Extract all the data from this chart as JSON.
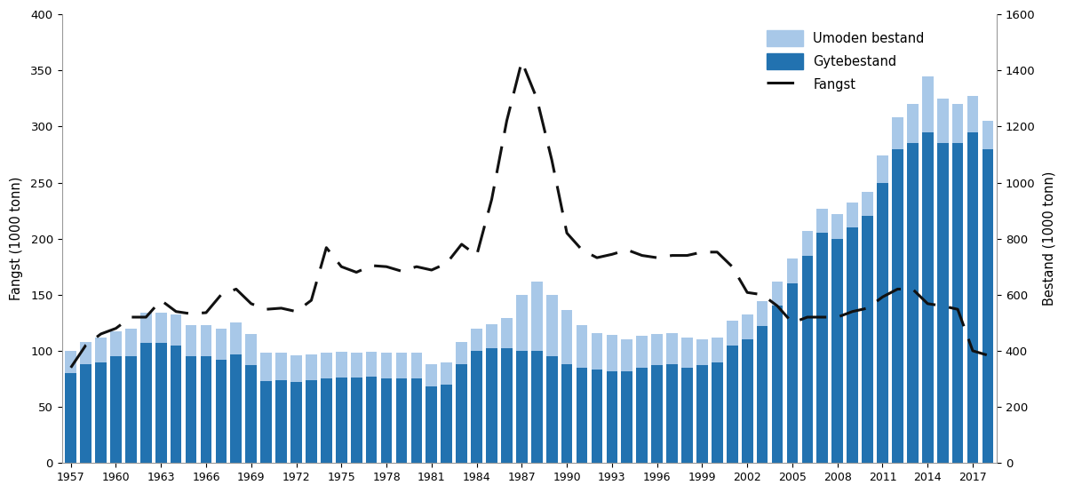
{
  "years": [
    1957,
    1958,
    1959,
    1960,
    1961,
    1962,
    1963,
    1964,
    1965,
    1966,
    1967,
    1968,
    1969,
    1970,
    1971,
    1972,
    1973,
    1974,
    1975,
    1976,
    1977,
    1978,
    1979,
    1980,
    1981,
    1982,
    1983,
    1984,
    1985,
    1986,
    1987,
    1988,
    1989,
    1990,
    1991,
    1992,
    1993,
    1994,
    1995,
    1996,
    1997,
    1998,
    1999,
    2000,
    2001,
    2002,
    2003,
    2004,
    2005,
    2006,
    2007,
    2008,
    2009,
    2010,
    2011,
    2012,
    2013,
    2014,
    2015,
    2016,
    2017,
    2018
  ],
  "gytebestand_r": [
    320,
    352,
    360,
    380,
    380,
    428,
    428,
    420,
    380,
    380,
    368,
    388,
    348,
    292,
    296,
    288,
    296,
    300,
    304,
    304,
    308,
    300,
    300,
    300,
    272,
    280,
    352,
    400,
    408,
    408,
    400,
    400,
    380,
    352,
    340,
    332,
    328,
    328,
    340,
    348,
    352,
    340,
    348,
    360,
    420,
    440,
    488,
    560,
    640,
    740,
    820,
    800,
    840,
    880,
    1000,
    1120,
    1140,
    1180,
    1140,
    1140,
    1180,
    1120
  ],
  "umoden_bestand_r": [
    80,
    80,
    88,
    88,
    100,
    108,
    108,
    108,
    112,
    112,
    112,
    112,
    112,
    100,
    96,
    96,
    92,
    92,
    92,
    88,
    88,
    92,
    92,
    92,
    80,
    80,
    80,
    80,
    88,
    108,
    200,
    248,
    220,
    192,
    152,
    132,
    128,
    112,
    112,
    112,
    112,
    108,
    92,
    88,
    88,
    88,
    88,
    88,
    88,
    88,
    88,
    88,
    88,
    88,
    96,
    112,
    140,
    200,
    160,
    140,
    128,
    100
  ],
  "fangst": [
    85,
    105,
    115,
    120,
    130,
    130,
    145,
    135,
    133,
    134,
    150,
    155,
    142,
    137,
    138,
    135,
    145,
    192,
    175,
    170,
    176,
    175,
    171,
    175,
    172,
    178,
    195,
    185,
    235,
    305,
    358,
    325,
    270,
    205,
    190,
    183,
    186,
    190,
    185,
    183,
    185,
    185,
    188,
    188,
    175,
    152,
    150,
    140,
    125,
    130,
    130,
    130,
    135,
    138,
    148,
    155,
    155,
    142,
    140,
    137,
    100,
    96
  ],
  "color_gyte": "#2272b0",
  "color_umoden": "#a8c8e8",
  "color_fangst": "#111111",
  "left_label": "Fangst (1000 tonn)",
  "right_label": "Bestand (1000 tonn)",
  "left_ylim": [
    0,
    400
  ],
  "right_ylim": [
    0,
    1600
  ],
  "left_yticks": [
    0,
    50,
    100,
    150,
    200,
    250,
    300,
    350,
    400
  ],
  "right_yticks": [
    0,
    200,
    400,
    600,
    800,
    1000,
    1200,
    1400,
    1600
  ],
  "legend_umoden": "Umoden bestand",
  "legend_gyte": "Gytebestand",
  "legend_fangst": "Fangst",
  "background_color": "#ffffff",
  "xlim": [
    1956.4,
    2018.6
  ]
}
